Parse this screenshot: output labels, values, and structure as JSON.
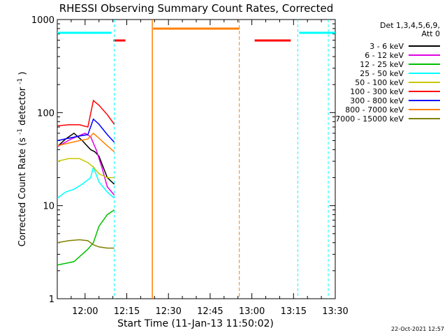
{
  "chart_data": {
    "type": "line",
    "title": "RHESSI Observing Summary Count Rates, Corrected",
    "xlabel": "Start Time (11-Jan-13 11:50:02)",
    "ylabel": "Corrected Count Rate (s",
    "ylabel_sup1": "-1",
    "ylabel_mid": " detector",
    "ylabel_sup2": "-1",
    "ylabel_end": ")",
    "yscale": "log",
    "ylim": [
      1,
      1000
    ],
    "xlim": [
      "11:50",
      "13:30"
    ],
    "x_ticks": [
      "12:00",
      "12:15",
      "12:30",
      "12:45",
      "13:00",
      "13:15",
      "13:30"
    ],
    "y_ticks": [
      "1",
      "10",
      "100",
      "1000"
    ],
    "legend": {
      "header1": "Det 1,3,4,5,6,9,",
      "header2": "Att 0",
      "placement": "right"
    },
    "timestamp": "22-Oct-2021 12:57",
    "series": [
      {
        "name": "3 - 6 keV",
        "color": "#000000",
        "x": [
          0.0,
          3.0,
          6.0,
          9.0,
          12.0,
          13.5,
          15.0,
          18.0,
          20.5
        ],
        "y": [
          43,
          52,
          60,
          50,
          40,
          38,
          34,
          20,
          17
        ]
      },
      {
        "name": "6 - 12 keV",
        "color": "#e000e0",
        "x": [
          0.0,
          5.0,
          10.0,
          12.0,
          14.0,
          16.0,
          18.0,
          20.5
        ],
        "y": [
          43,
          52,
          60,
          55,
          40,
          26,
          16,
          13
        ]
      },
      {
        "name": "12 - 25 keV",
        "color": "#00c000",
        "x": [
          0.0,
          6.0,
          11.0,
          13.0,
          15.0,
          18.0,
          20.5
        ],
        "y": [
          2.3,
          2.5,
          3.4,
          4.0,
          6.0,
          8.0,
          9.0
        ]
      },
      {
        "name": "25 - 50 keV",
        "color": "#00ffff",
        "x": [
          0.0,
          3.0,
          6.0,
          9.0,
          12.0,
          13.0,
          15.0,
          18.0,
          20.5
        ],
        "y": [
          12,
          14,
          15,
          17,
          20,
          26,
          18,
          14,
          12
        ]
      },
      {
        "name": "50 - 100 keV",
        "color": "#c8c800",
        "x": [
          0.0,
          4.0,
          8.0,
          11.0,
          13.0,
          15.0,
          18.0,
          20.5
        ],
        "y": [
          30,
          32,
          32,
          29,
          26,
          22,
          20,
          20
        ]
      },
      {
        "name": "100 - 300 keV",
        "color": "#ff0000",
        "x": [
          0.0,
          4.0,
          8.0,
          11.0,
          13.0,
          15.0,
          18.0,
          20.5
        ],
        "y": [
          72,
          74,
          74,
          70,
          135,
          120,
          95,
          75
        ]
      },
      {
        "name": "300 - 800 keV",
        "color": "#0000ff",
        "x": [
          0.0,
          4.0,
          8.0,
          11.0,
          13.0,
          15.0,
          18.0,
          20.5
        ],
        "y": [
          50,
          53,
          56,
          58,
          85,
          75,
          58,
          48
        ]
      },
      {
        "name": "800 - 7000 keV",
        "color": "#ff8000",
        "x": [
          0.0,
          4.0,
          8.0,
          11.0,
          13.0,
          15.0,
          18.0,
          20.5
        ],
        "y": [
          44,
          47,
          50,
          52,
          60,
          53,
          44,
          38
        ]
      },
      {
        "name": "7000 - 15000 keV",
        "color": "#808000",
        "x": [
          0.0,
          4.0,
          8.0,
          11.0,
          13.0,
          15.0,
          18.0,
          20.5
        ],
        "y": [
          4.0,
          4.2,
          4.3,
          4.2,
          3.8,
          3.6,
          3.5,
          3.5
        ]
      }
    ]
  }
}
